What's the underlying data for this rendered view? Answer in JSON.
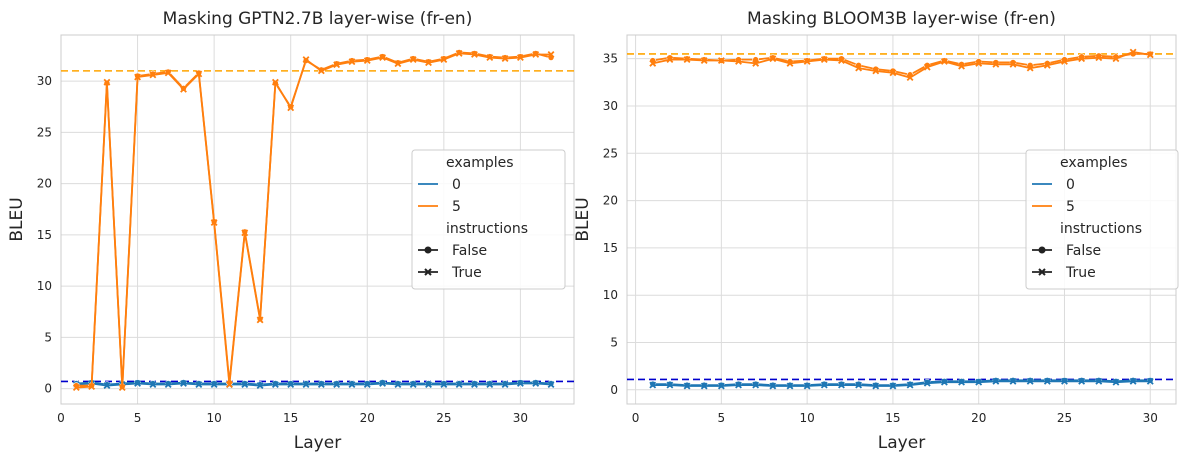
{
  "chart_data": [
    {
      "type": "line",
      "title": "Masking GPTN2.7B layer-wise (fr-en)",
      "xlabel": "Layer",
      "ylabel": "BLEU",
      "xlim": [
        0,
        33.5
      ],
      "ylim": [
        -1.5,
        34.5
      ],
      "xticks": [
        0,
        5,
        10,
        15,
        20,
        25,
        30
      ],
      "yticks": [
        0,
        5,
        10,
        15,
        20,
        25,
        30
      ],
      "grid": true,
      "legend_position": "center-right",
      "legend": {
        "title1": "examples",
        "hue": [
          {
            "label": "0",
            "color": "#1f77b4"
          },
          {
            "label": "5",
            "color": "#ff7f0e"
          }
        ],
        "title2": "instructions",
        "style": [
          {
            "label": "False",
            "marker": "circle"
          },
          {
            "label": "True",
            "marker": "x"
          }
        ]
      },
      "reference_lines": [
        {
          "y": 31.0,
          "color": "#ffa500"
        },
        {
          "y": 0.7,
          "color": "#0000cd"
        }
      ],
      "series": [
        {
          "examples": "0",
          "instructions": "False",
          "color": "#1f77b4",
          "marker": "circle",
          "x": [
            1,
            2,
            3,
            4,
            5,
            6,
            7,
            8,
            9,
            10,
            11,
            12,
            13,
            14,
            15,
            16,
            17,
            18,
            19,
            20,
            21,
            22,
            23,
            24,
            25,
            26,
            27,
            28,
            29,
            30,
            31,
            32
          ],
          "y": [
            0.5,
            0.6,
            0.4,
            0.5,
            0.6,
            0.5,
            0.5,
            0.6,
            0.5,
            0.5,
            0.5,
            0.5,
            0.4,
            0.5,
            0.5,
            0.5,
            0.5,
            0.5,
            0.5,
            0.5,
            0.6,
            0.5,
            0.5,
            0.5,
            0.5,
            0.5,
            0.5,
            0.5,
            0.5,
            0.6,
            0.6,
            0.5
          ]
        },
        {
          "examples": "0",
          "instructions": "True",
          "color": "#1f77b4",
          "marker": "x",
          "x": [
            1,
            2,
            3,
            4,
            5,
            6,
            7,
            8,
            9,
            10,
            11,
            12,
            13,
            14,
            15,
            16,
            17,
            18,
            19,
            20,
            21,
            22,
            23,
            24,
            25,
            26,
            27,
            28,
            29,
            30,
            31,
            32
          ],
          "y": [
            0.4,
            0.5,
            0.3,
            0.4,
            0.5,
            0.4,
            0.4,
            0.5,
            0.4,
            0.4,
            0.4,
            0.4,
            0.3,
            0.4,
            0.4,
            0.4,
            0.4,
            0.4,
            0.4,
            0.4,
            0.5,
            0.4,
            0.4,
            0.4,
            0.4,
            0.4,
            0.4,
            0.4,
            0.4,
            0.5,
            0.5,
            0.4
          ]
        },
        {
          "examples": "5",
          "instructions": "False",
          "color": "#ff7f0e",
          "marker": "circle",
          "x": [
            1,
            2,
            3,
            4,
            5,
            6,
            7,
            8,
            9,
            10,
            11,
            12,
            13,
            14,
            15,
            16,
            17,
            18,
            19,
            20,
            21,
            22,
            23,
            24,
            25,
            26,
            27,
            28,
            29,
            30,
            31,
            32
          ],
          "y": [
            0.3,
            0.3,
            29.8,
            0.2,
            30.5,
            30.7,
            30.9,
            29.3,
            30.8,
            16.3,
            0.6,
            15.3,
            6.8,
            29.8,
            27.5,
            32.0,
            31.1,
            31.7,
            32.0,
            32.1,
            32.4,
            31.8,
            32.2,
            31.9,
            32.2,
            32.8,
            32.7,
            32.4,
            32.3,
            32.4,
            32.7,
            32.3
          ]
        },
        {
          "examples": "5",
          "instructions": "True",
          "color": "#ff7f0e",
          "marker": "x",
          "x": [
            1,
            2,
            3,
            4,
            5,
            6,
            7,
            8,
            9,
            10,
            11,
            12,
            13,
            14,
            15,
            16,
            17,
            18,
            19,
            20,
            21,
            22,
            23,
            24,
            25,
            26,
            27,
            28,
            29,
            30,
            31,
            32
          ],
          "y": [
            0.1,
            0.2,
            29.9,
            0.1,
            30.4,
            30.6,
            30.8,
            29.2,
            30.7,
            16.2,
            0.4,
            15.2,
            6.7,
            29.9,
            27.4,
            32.1,
            31.0,
            31.6,
            31.9,
            32.0,
            32.3,
            31.7,
            32.1,
            31.8,
            32.1,
            32.7,
            32.6,
            32.3,
            32.2,
            32.3,
            32.6,
            32.6
          ]
        }
      ]
    },
    {
      "type": "line",
      "title": "Masking BLOOM3B layer-wise (fr-en)",
      "xlabel": "Layer",
      "ylabel": "BLEU",
      "xlim": [
        -0.5,
        31.5
      ],
      "ylim": [
        -1.5,
        37.5
      ],
      "xticks": [
        0,
        5,
        10,
        15,
        20,
        25,
        30
      ],
      "yticks": [
        0,
        5,
        10,
        15,
        20,
        25,
        30,
        35
      ],
      "grid": true,
      "legend_position": "center-right",
      "legend": {
        "title1": "examples",
        "hue": [
          {
            "label": "0",
            "color": "#1f77b4"
          },
          {
            "label": "5",
            "color": "#ff7f0e"
          }
        ],
        "title2": "instructions",
        "style": [
          {
            "label": "False",
            "marker": "circle"
          },
          {
            "label": "True",
            "marker": "x"
          }
        ]
      },
      "reference_lines": [
        {
          "y": 35.5,
          "color": "#ffa500"
        },
        {
          "y": 1.1,
          "color": "#0000cd"
        }
      ],
      "series": [
        {
          "examples": "0",
          "instructions": "False",
          "color": "#1f77b4",
          "marker": "circle",
          "x": [
            1,
            2,
            3,
            4,
            5,
            6,
            7,
            8,
            9,
            10,
            11,
            12,
            13,
            14,
            15,
            16,
            17,
            18,
            19,
            20,
            21,
            22,
            23,
            24,
            25,
            26,
            27,
            28,
            29,
            30
          ],
          "y": [
            0.6,
            0.6,
            0.5,
            0.5,
            0.5,
            0.6,
            0.6,
            0.5,
            0.5,
            0.5,
            0.6,
            0.6,
            0.6,
            0.5,
            0.5,
            0.6,
            0.8,
            0.9,
            0.9,
            0.9,
            1.0,
            1.0,
            1.0,
            1.0,
            1.0,
            1.0,
            1.0,
            0.9,
            1.0,
            1.0
          ]
        },
        {
          "examples": "0",
          "instructions": "True",
          "color": "#1f77b4",
          "marker": "x",
          "x": [
            1,
            2,
            3,
            4,
            5,
            6,
            7,
            8,
            9,
            10,
            11,
            12,
            13,
            14,
            15,
            16,
            17,
            18,
            19,
            20,
            21,
            22,
            23,
            24,
            25,
            26,
            27,
            28,
            29,
            30
          ],
          "y": [
            0.5,
            0.5,
            0.4,
            0.4,
            0.4,
            0.5,
            0.5,
            0.4,
            0.4,
            0.4,
            0.5,
            0.5,
            0.5,
            0.4,
            0.4,
            0.5,
            0.7,
            0.8,
            0.8,
            0.8,
            0.9,
            0.9,
            0.9,
            0.9,
            0.9,
            0.9,
            0.9,
            0.8,
            0.9,
            0.9
          ]
        },
        {
          "examples": "5",
          "instructions": "False",
          "color": "#ff7f0e",
          "marker": "circle",
          "x": [
            1,
            2,
            3,
            4,
            5,
            6,
            7,
            8,
            9,
            10,
            11,
            12,
            13,
            14,
            15,
            16,
            17,
            18,
            19,
            20,
            21,
            22,
            23,
            24,
            25,
            26,
            27,
            28,
            29,
            30
          ],
          "y": [
            34.8,
            35.1,
            35.0,
            34.9,
            34.8,
            34.9,
            34.9,
            35.1,
            34.7,
            34.8,
            35.0,
            35.0,
            34.3,
            33.9,
            33.7,
            33.3,
            34.3,
            34.8,
            34.4,
            34.7,
            34.6,
            34.6,
            34.3,
            34.5,
            34.9,
            35.2,
            35.3,
            35.2,
            35.5,
            35.5
          ]
        },
        {
          "examples": "5",
          "instructions": "True",
          "color": "#ff7f0e",
          "marker": "x",
          "x": [
            1,
            2,
            3,
            4,
            5,
            6,
            7,
            8,
            9,
            10,
            11,
            12,
            13,
            14,
            15,
            16,
            17,
            18,
            19,
            20,
            21,
            22,
            23,
            24,
            25,
            26,
            27,
            28,
            29,
            30
          ],
          "y": [
            34.5,
            34.9,
            34.9,
            34.8,
            34.8,
            34.7,
            34.5,
            35.0,
            34.5,
            34.7,
            34.9,
            34.8,
            34.0,
            33.7,
            33.5,
            33.0,
            34.1,
            34.7,
            34.2,
            34.5,
            34.4,
            34.4,
            34.0,
            34.3,
            34.7,
            35.0,
            35.1,
            35.0,
            35.7,
            35.4
          ]
        }
      ]
    }
  ]
}
